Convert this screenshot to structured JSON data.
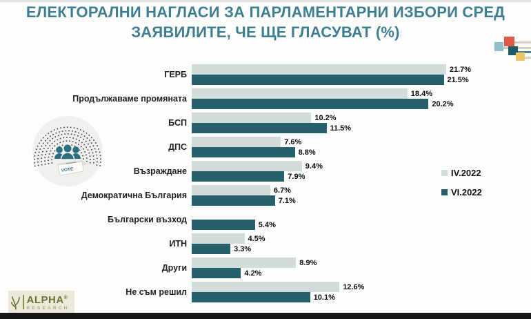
{
  "title": {
    "line1": "ЕЛЕКТОРАЛНИ НАГЛАСИ ЗА ПАРЛАМЕНТАРНИ ИЗБОРИ СРЕД",
    "line2": "ЗАЯВИЛИТЕ, ЧЕ ЩЕ ГЛАСУВАТ (%)"
  },
  "chart_data": {
    "type": "bar",
    "orientation": "horizontal",
    "title": "ЕЛЕКТОРАЛНИ НАГЛАСИ ЗА ПАРЛАМЕНТАРНИ ИЗБОРИ СРЕД ЗАЯВИЛИТЕ, ЧЕ ЩЕ ГЛАСУВАТ (%)",
    "categories": [
      "ГЕРБ",
      "Продължаваме промяната",
      "БСП",
      "ДПС",
      "Възраждане",
      "Демократична България",
      "Български възход",
      "ИТН",
      "Други",
      "Не съм решил"
    ],
    "series": [
      {
        "name": "IV.2022",
        "color": "#d2dcdb",
        "values": [
          21.7,
          18.4,
          10.2,
          7.6,
          9.4,
          6.7,
          null,
          4.5,
          8.9,
          12.6
        ]
      },
      {
        "name": "VI.2022",
        "color": "#26606d",
        "values": [
          21.5,
          20.2,
          11.5,
          8.8,
          7.9,
          7.1,
          5.4,
          3.3,
          4.2,
          10.1
        ]
      }
    ],
    "value_suffix": "%",
    "xlim": [
      0,
      22
    ],
    "grid": false,
    "legend_position": "right"
  },
  "badge": {
    "vote_label": "VOTE"
  },
  "logo": {
    "name": "ALPHA",
    "trademark": "®",
    "sub": "RESEARCH"
  },
  "colors": {
    "title_teal": "#3e7e91",
    "bar_light": "#d2dcdb",
    "bar_dark": "#26606d",
    "decor_red": "#dd5a47",
    "decor_blue": "#8fc0cb",
    "decor_teal": "#1d5b68",
    "decor_yellow": "#eec765",
    "logo_olive": "#6b7433"
  }
}
